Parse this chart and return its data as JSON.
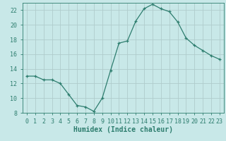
{
  "x": [
    0,
    1,
    2,
    3,
    4,
    5,
    6,
    7,
    8,
    9,
    10,
    11,
    12,
    13,
    14,
    15,
    16,
    17,
    18,
    19,
    20,
    21,
    22,
    23
  ],
  "y": [
    13,
    13,
    12.5,
    12.5,
    12,
    10.5,
    9,
    8.8,
    8.2,
    10,
    13.8,
    17.5,
    17.8,
    20.5,
    22.2,
    22.8,
    22.2,
    21.8,
    20.4,
    18.2,
    17.2,
    16.5,
    15.8,
    15.3
  ],
  "line_color": "#2d7d6e",
  "marker": "+",
  "marker_color": "#2d7d6e",
  "bg_color": "#c8e8e8",
  "grid_color": "#b0cccc",
  "xlabel": "Humidex (Indice chaleur)",
  "xlim": [
    -0.5,
    23.5
  ],
  "ylim": [
    8,
    23
  ],
  "yticks": [
    8,
    10,
    12,
    14,
    16,
    18,
    20,
    22
  ],
  "xtick_labels": [
    "0",
    "1",
    "2",
    "3",
    "4",
    "5",
    "6",
    "7",
    "8",
    "9",
    "10",
    "11",
    "12",
    "13",
    "14",
    "15",
    "16",
    "17",
    "18",
    "19",
    "20",
    "21",
    "22",
    "23"
  ],
  "spine_color": "#2d7d6e",
  "tick_color": "#2d7d6e",
  "label_color": "#2d7d6e",
  "xlabel_fontsize": 7,
  "tick_fontsize": 6
}
